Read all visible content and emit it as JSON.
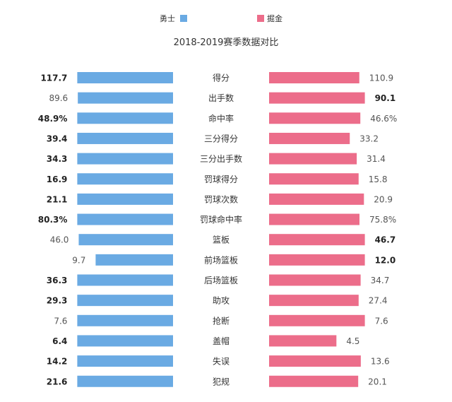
{
  "legend": [
    {
      "label": "勇士",
      "color": "#6aaae3"
    },
    {
      "label": "掘金",
      "color": "#ec6d8a"
    }
  ],
  "title": "2018-2019赛季数据对比",
  "chart_data": {
    "type": "bar",
    "orientation": "horizontal-mirrored",
    "title": "2018-2019赛季数据对比",
    "categories": [
      "得分",
      "出手数",
      "命中率",
      "三分得分",
      "三分出手数",
      "罚球得分",
      "罚球次数",
      "罚球命中率",
      "篮板",
      "前场篮板",
      "后场篮板",
      "助攻",
      "抢断",
      "盖帽",
      "失误",
      "犯规"
    ],
    "series": [
      {
        "name": "勇士",
        "color": "#6aaae3",
        "values": [
          117.7,
          89.6,
          48.9,
          39.4,
          34.3,
          16.9,
          21.1,
          80.3,
          46.0,
          9.7,
          36.3,
          29.3,
          7.6,
          6.4,
          14.2,
          21.6
        ],
        "labels": [
          "117.7",
          "89.6",
          "48.9%",
          "39.4",
          "34.3",
          "16.9",
          "21.1",
          "80.3%",
          "46.0",
          "9.7",
          "36.3",
          "29.3",
          "7.6",
          "6.4",
          "14.2",
          "21.6"
        ],
        "bold": [
          true,
          false,
          true,
          true,
          true,
          true,
          true,
          true,
          false,
          false,
          true,
          true,
          false,
          true,
          true,
          true
        ]
      },
      {
        "name": "掘金",
        "color": "#ec6d8a",
        "values": [
          110.9,
          90.1,
          46.6,
          33.2,
          31.4,
          15.8,
          20.9,
          75.8,
          46.7,
          12.0,
          34.7,
          27.4,
          7.6,
          4.5,
          13.6,
          20.1
        ],
        "labels": [
          "110.9",
          "90.1",
          "46.6%",
          "33.2",
          "31.4",
          "15.8",
          "20.9",
          "75.8%",
          "46.7",
          "12.0",
          "34.7",
          "27.4",
          "7.6",
          "4.5",
          "13.6",
          "20.1"
        ],
        "bold": [
          false,
          true,
          false,
          false,
          false,
          false,
          false,
          false,
          true,
          true,
          false,
          false,
          false,
          false,
          false,
          false
        ]
      }
    ],
    "legend_position": "top-center",
    "grid": false
  }
}
